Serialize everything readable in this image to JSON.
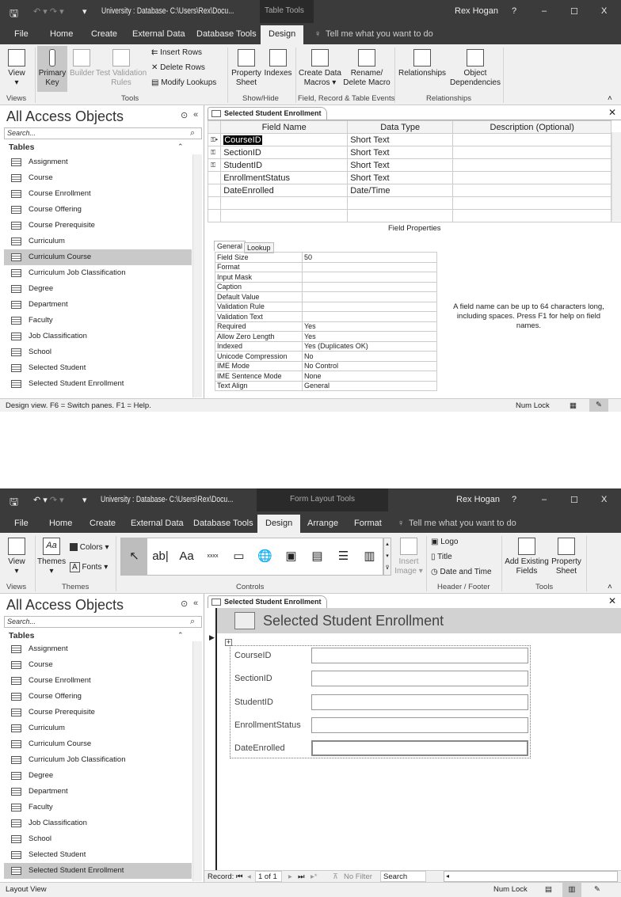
{
  "top": {
    "title_bar": {
      "title": "University : Database- C:\\Users\\Rex\\Docu...",
      "context": "Table Tools",
      "user": "Rex Hogan",
      "help": "?",
      "minimize": "–",
      "maximize": "☐",
      "close": "X"
    },
    "tabs": [
      "File",
      "Home",
      "Create",
      "External Data",
      "Database Tools",
      "Design"
    ],
    "tell_me": "Tell me what you want to do",
    "ribbon": {
      "view": "View",
      "primary_key": "Primary Key",
      "builder": "Builder",
      "test_validation": "Test Validation Rules",
      "insert_rows": "Insert Rows",
      "delete_rows": "Delete Rows",
      "modify_lookups": "Modify Lookups",
      "property_sheet": "Property Sheet",
      "indexes": "Indexes",
      "create_data_macros": "Create Data Macros ▾",
      "rename_delete_macro": "Rename/ Delete Macro",
      "relationships": "Relationships",
      "object_dependencies": "Object Dependencies",
      "groups": {
        "views": "Views",
        "tools": "Tools",
        "show_hide": "Show/Hide",
        "events": "Field, Record & Table Events",
        "relationships": "Relationships"
      }
    },
    "nav": {
      "title": "All Access Objects",
      "search_placeholder": "Search...",
      "section": "Tables",
      "items": [
        "Assignment",
        "Course",
        "Course Enrollment",
        "Course Offering",
        "Course Prerequisite",
        "Curriculum",
        "Curriculum Course",
        "Curriculum Job Classification",
        "Degree",
        "Department",
        "Faculty",
        "Job Classification",
        "School",
        "Selected Student",
        "Selected Student Enrollment"
      ],
      "selected": "Curriculum Course"
    },
    "doc_tab": "Selected Student Enrollment",
    "grid": {
      "headers": [
        "Field Name",
        "Data Type",
        "Description (Optional)"
      ],
      "rows": [
        {
          "name": "CourseID",
          "type": "Short Text",
          "key": true
        },
        {
          "name": "SectionID",
          "type": "Short Text",
          "key": true
        },
        {
          "name": "StudentID",
          "type": "Short Text",
          "key": true
        },
        {
          "name": "EnrollmentStatus",
          "type": "Short Text",
          "key": false
        },
        {
          "name": "DateEnrolled",
          "type": "Date/Time",
          "key": false
        }
      ]
    },
    "field_props": {
      "label": "Field Properties",
      "tabs": [
        "General",
        "Lookup"
      ],
      "props": [
        [
          "Field Size",
          "50"
        ],
        [
          "Format",
          ""
        ],
        [
          "Input Mask",
          ""
        ],
        [
          "Caption",
          ""
        ],
        [
          "Default Value",
          ""
        ],
        [
          "Validation Rule",
          ""
        ],
        [
          "Validation Text",
          ""
        ],
        [
          "Required",
          "Yes"
        ],
        [
          "Allow Zero Length",
          "Yes"
        ],
        [
          "Indexed",
          "Yes (Duplicates OK)"
        ],
        [
          "Unicode Compression",
          "No"
        ],
        [
          "IME Mode",
          "No Control"
        ],
        [
          "IME Sentence Mode",
          "None"
        ],
        [
          "Text Align",
          "General"
        ]
      ],
      "help": "A field name can be up to 64 characters long, including spaces. Press F1 for help on field names."
    },
    "status": {
      "left": "Design view.  F6 = Switch panes.  F1 = Help.",
      "num_lock": "Num Lock"
    }
  },
  "bottom": {
    "title_bar": {
      "title": "University : Database- C:\\Users\\Rex\\Docu...",
      "context": "Form Layout Tools",
      "user": "Rex Hogan",
      "help": "?",
      "minimize": "–",
      "maximize": "☐",
      "close": "X"
    },
    "tabs": [
      "File",
      "Home",
      "Create",
      "External Data",
      "Database Tools",
      "Design",
      "Arrange",
      "Format"
    ],
    "tell_me": "Tell me what you want to do",
    "ribbon": {
      "view": "View",
      "themes": "Themes",
      "colors": "Colors ▾",
      "fonts": "Fonts ▾",
      "insert_image": "Insert Image ▾",
      "logo": "Logo",
      "title": "Title",
      "date_time": "Date and Time",
      "add_existing_fields": "Add Existing Fields",
      "property_sheet": "Property Sheet",
      "controls": [
        "select",
        "ab|",
        "Aa",
        "xxxx",
        "tab",
        "hyperlink",
        "web",
        "nav",
        "list",
        "combo"
      ],
      "groups": {
        "views": "Views",
        "themes": "Themes",
        "controls": "Controls",
        "header_footer": "Header / Footer",
        "tools": "Tools"
      }
    },
    "nav": {
      "title": "All Access Objects",
      "search_placeholder": "Search...",
      "section": "Tables",
      "items": [
        "Assignment",
        "Course",
        "Course Enrollment",
        "Course Offering",
        "Course Prerequisite",
        "Curriculum",
        "Curriculum Course",
        "Curriculum Job Classification",
        "Degree",
        "Department",
        "Faculty",
        "Job Classification",
        "School",
        "Selected Student",
        "Selected Student Enrollment"
      ],
      "selected": "Selected Student Enrollment"
    },
    "doc_tab": "Selected Student Enrollment",
    "form": {
      "title": "Selected Student Enrollment",
      "fields": [
        "CourseID",
        "SectionID",
        "StudentID",
        "EnrollmentStatus",
        "DateEnrolled"
      ]
    },
    "record_nav": {
      "label": "Record:",
      "position": "1 of 1",
      "filter": "No Filter",
      "search": "Search"
    },
    "status": {
      "left": "Layout View",
      "num_lock": "Num Lock"
    }
  }
}
